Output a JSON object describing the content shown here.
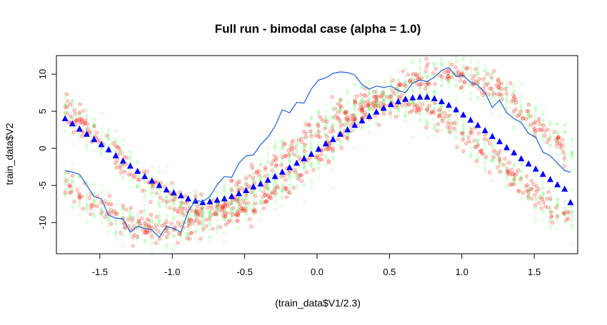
{
  "chart_data": {
    "type": "scatter",
    "title": "Full run - bimodal case (alpha = 1.0)",
    "xlabel": "(train_data$V1/2.3)",
    "ylabel": "train_data$V2",
    "xlim": [
      -1.8,
      1.8
    ],
    "ylim": [
      -14.2,
      12.5
    ],
    "x_ticks": [
      "-1.5",
      "-1.0",
      "-0.5",
      "0.0",
      "0.5",
      "1.0",
      "1.5"
    ],
    "y_ticks": [
      "10",
      "5",
      "0",
      "-5",
      "-10"
    ],
    "grid": false,
    "legend": "none",
    "colors": {
      "observed_points": "#ff0000",
      "sampled_points": "#33ff33",
      "mean_triangles": "#0000ff",
      "trace_line": "#1f5fd6"
    },
    "series": [
      {
        "kind": "triangles",
        "x": [
          -1.74,
          -1.69,
          -1.64,
          -1.59,
          -1.54,
          -1.49,
          -1.44,
          -1.39,
          -1.34,
          -1.29,
          -1.24,
          -1.19,
          -1.14,
          -1.09,
          -1.04,
          -0.99,
          -0.94,
          -0.89,
          -0.84,
          -0.79,
          -0.74,
          -0.69,
          -0.64,
          -0.59,
          -0.54,
          -0.49,
          -0.44,
          -0.39,
          -0.34,
          -0.29,
          -0.24,
          -0.19,
          -0.14,
          -0.09,
          -0.04,
          0.01,
          0.06,
          0.11,
          0.16,
          0.21,
          0.26,
          0.31,
          0.36,
          0.41,
          0.46,
          0.51,
          0.56,
          0.61,
          0.66,
          0.71,
          0.76,
          0.81,
          0.86,
          0.91,
          0.96,
          1.01,
          1.06,
          1.11,
          1.16,
          1.21,
          1.26,
          1.31,
          1.36,
          1.41,
          1.46,
          1.51,
          1.56,
          1.61,
          1.66,
          1.71,
          1.75
        ],
        "y": [
          4.0,
          3.3,
          2.6,
          1.9,
          1.2,
          0.5,
          -0.2,
          -1.0,
          -1.7,
          -2.4,
          -3.1,
          -3.8,
          -4.4,
          -5.0,
          -5.6,
          -6.0,
          -6.4,
          -6.8,
          -7.1,
          -7.3,
          -7.2,
          -7.0,
          -6.8,
          -6.5,
          -6.1,
          -5.7,
          -5.2,
          -4.8,
          -4.3,
          -3.8,
          -3.2,
          -2.6,
          -2.0,
          -1.4,
          -0.8,
          -0.1,
          0.6,
          1.2,
          1.9,
          2.5,
          3.1,
          3.7,
          4.3,
          4.9,
          5.4,
          5.9,
          6.3,
          6.6,
          6.8,
          6.9,
          6.9,
          6.7,
          6.3,
          5.8,
          5.2,
          4.5,
          3.8,
          3.1,
          2.4,
          1.6,
          0.9,
          0.1,
          -0.6,
          -1.4,
          -2.1,
          -2.8,
          -3.5,
          -4.2,
          -4.9,
          -5.5,
          -7.3
        ]
      },
      {
        "kind": "line",
        "x": [
          -1.74,
          -1.69,
          -1.64,
          -1.59,
          -1.54,
          -1.49,
          -1.44,
          -1.39,
          -1.34,
          -1.29,
          -1.24,
          -1.19,
          -1.14,
          -1.09,
          -1.04,
          -0.99,
          -0.94,
          -0.89,
          -0.84,
          -0.79,
          -0.74,
          -0.69,
          -0.64,
          -0.59,
          -0.54,
          -0.49,
          -0.44,
          -0.39,
          -0.34,
          -0.29,
          -0.24,
          -0.19,
          -0.14,
          -0.09,
          -0.04,
          0.01,
          0.06,
          0.11,
          0.16,
          0.21,
          0.26,
          0.31,
          0.36,
          0.41,
          0.46,
          0.51,
          0.56,
          0.61,
          0.66,
          0.71,
          0.76,
          0.81,
          0.86,
          0.91,
          0.96,
          1.01,
          1.06,
          1.11,
          1.16,
          1.21,
          1.26,
          1.31,
          1.36,
          1.41,
          1.46,
          1.51,
          1.56,
          1.61,
          1.66,
          1.71,
          1.75
        ],
        "y": [
          -3.0,
          -3.2,
          -3.5,
          -5.0,
          -6.5,
          -6.8,
          -9.0,
          -9.4,
          -9.5,
          -11.3,
          -10.5,
          -10.8,
          -11.0,
          -12.0,
          -10.5,
          -10.8,
          -11.3,
          -8.5,
          -7.0,
          -7.2,
          -6.5,
          -4.9,
          -3.8,
          -3.9,
          -2.0,
          -1.0,
          -0.9,
          0.5,
          1.5,
          3.0,
          5.2,
          4.8,
          6.2,
          6.1,
          8.0,
          9.2,
          9.5,
          10.1,
          10.3,
          10.2,
          9.9,
          8.6,
          8.0,
          8.4,
          8.2,
          8.4,
          7.8,
          7.5,
          8.8,
          9.2,
          9.0,
          9.6,
          10.5,
          10.9,
          9.7,
          9.8,
          8.9,
          8.5,
          7.5,
          5.5,
          6.5,
          4.8,
          4.0,
          3.5,
          2.0,
          1.5,
          -0.5,
          -1.0,
          -2.0,
          -3.0,
          -3.2
        ]
      }
    ]
  }
}
